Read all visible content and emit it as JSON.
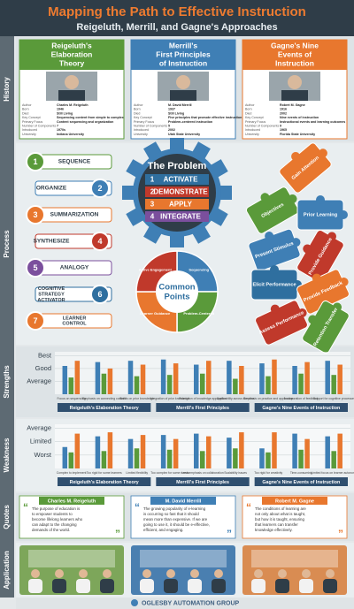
{
  "header": {
    "title": "Mapping the Path to Effective Instruction",
    "subtitle": "Reigeluth, Merrill, and Gagne's Approaches"
  },
  "sections": [
    "History",
    "Process",
    "Strengths",
    "Weakness",
    "Quotes",
    "Application"
  ],
  "history": {
    "fields": [
      "Author",
      "Born",
      "Died",
      "Key Concept",
      "Primary Focus",
      "Number of Components",
      "Introduced",
      "University"
    ],
    "cards": [
      {
        "title": [
          "Reigeluth's",
          "Elaboration",
          "Theory"
        ],
        "values": [
          "Charles M. Reigeluth",
          "1946",
          "Still Living",
          "Sequencing content from simple to complex",
          "Content sequencing and organization",
          "7",
          "1970s",
          "Indiana University"
        ]
      },
      {
        "title": [
          "Merrill's",
          "First Principles",
          "of Instruction"
        ],
        "values": [
          "M. David Merrill",
          "1937",
          "Still Living",
          "Five principles that promote effective instruction",
          "Problem-centered instruction",
          "5",
          "2002",
          "Utah State University"
        ]
      },
      {
        "title": [
          "Gagne's Nine",
          "Events of",
          "Instruction"
        ],
        "values": [
          "Robert M. Gagne",
          "1916",
          "2002",
          "Nine events of instruction",
          "Instructional events and learning outcomes",
          "9",
          "1965",
          "Florida State University"
        ]
      }
    ]
  },
  "process": {
    "steps": [
      {
        "number": "1",
        "label": [
          "SEQUENCE"
        ]
      },
      {
        "number": "2",
        "label": [
          "ORGANIZE"
        ]
      },
      {
        "number": "3",
        "label": [
          "SUMMARIZATION"
        ]
      },
      {
        "number": "4",
        "label": [
          "SYNTHESIZE"
        ]
      },
      {
        "number": "5",
        "label": [
          "ANALOGY"
        ]
      },
      {
        "number": "6",
        "label": [
          "COGNITIVE",
          "STRATEGY",
          "ACTIVATOR"
        ]
      },
      {
        "number": "7",
        "label": [
          "LEARNER",
          "CONTROL"
        ]
      }
    ],
    "problem": {
      "title": "The Problem",
      "items": [
        {
          "number": "1",
          "label": "ACTIVATE"
        },
        {
          "number": "2",
          "label": "DEMONSTRATE"
        },
        {
          "number": "3",
          "label": "APPLY"
        },
        {
          "number": "4",
          "label": "INTEGRATE"
        }
      ]
    },
    "common": {
      "title": [
        "Common",
        "Points"
      ],
      "segments": [
        "Sequencing",
        "Problem-Centered",
        "Learner Guidance",
        "Active Engagement"
      ]
    },
    "events": [
      "Gain Attention",
      "Objectives",
      "Prior Learning",
      "Present Stimulus",
      "Provide Guidance",
      "Elicit Performance",
      "Provide Feedback",
      "Assess Performance",
      "Retention Transfer"
    ]
  },
  "strengths": {
    "ylim": [
      0,
      3.3
    ],
    "yticks": [
      {
        "value": 1,
        "label": "Average"
      },
      {
        "value": 2,
        "label": "Good"
      },
      {
        "value": 3,
        "label": "Best"
      }
    ],
    "colors": [
      "#3f7fb5",
      "#5a9a3a",
      "#e8772e"
    ],
    "groups": [
      {
        "name": "Reigeluth's Elaboration Theory",
        "categories": [
          {
            "label": "Focus on sequencing",
            "values": [
              2.2,
              1.3,
              2.6
            ]
          },
          {
            "label": "Emphasis on connecting content",
            "values": [
              2.5,
              1.6,
              2.0
            ]
          },
          {
            "label": "Builds on prior knowledge",
            "values": [
              2.6,
              1.4,
              2.3
            ]
          }
        ]
      },
      {
        "name": "Merrill's First Principles",
        "categories": [
          {
            "label": "Integration of prior knowledge",
            "values": [
              2.7,
              1.5,
              2.4
            ]
          },
          {
            "label": "Promotion of knowledge application",
            "values": [
              2.3,
              1.6,
              2.6
            ]
          },
          {
            "label": "Applicability across domains",
            "values": [
              2.6,
              1.2,
              2.2
            ]
          }
        ]
      },
      {
        "name": "Gagne's Nine Events of Instruction",
        "categories": [
          {
            "label": "Emphasis on practice and application",
            "values": [
              2.4,
              1.4,
              2.7
            ]
          },
          {
            "label": "Incorporation of feedback",
            "values": [
              2.2,
              1.6,
              2.5
            ]
          },
          {
            "label": "Support for cognitive processes",
            "values": [
              2.6,
              1.5,
              2.3
            ]
          }
        ]
      }
    ]
  },
  "weakness": {
    "ylim": [
      0,
      3.3
    ],
    "yticks": [
      {
        "value": 1,
        "label": "Worst"
      },
      {
        "value": 2,
        "label": "Limited"
      },
      {
        "value": 3,
        "label": "Average"
      }
    ],
    "colors": [
      "#3f7fb5",
      "#5a9a3a",
      "#e8772e"
    ],
    "groups": [
      {
        "name": "Reigeluth's Elaboration Theory",
        "categories": [
          {
            "label": "Complex to implement",
            "values": [
              1.6,
              1.2,
              2.6
            ]
          },
          {
            "label": "Too rigid for some learners",
            "values": [
              2.4,
              1.3,
              2.7
            ]
          },
          {
            "label": "Limited flexibility",
            "values": [
              2.2,
              1.5,
              2.5
            ]
          }
        ]
      },
      {
        "name": "Merrill's First Principles",
        "categories": [
          {
            "label": "Too complex for some needs",
            "values": [
              2.5,
              1.4,
              2.2
            ]
          },
          {
            "label": "Less emphasis on collaboration",
            "values": [
              2.6,
              1.3,
              2.4
            ]
          },
          {
            "label": "Scalability issues",
            "values": [
              2.3,
              1.5,
              2.7
            ]
          }
        ]
      },
      {
        "name": "Gagne's Nine Events of Instruction",
        "categories": [
          {
            "label": "Too rigid for creativity",
            "values": [
              1.5,
              1.2,
              2.7
            ]
          },
          {
            "label": "Time-consuming",
            "values": [
              2.6,
              1.4,
              2.2
            ]
          },
          {
            "label": "Limited focus on learner autonomy",
            "values": [
              2.4,
              1.3,
              2.6
            ]
          }
        ]
      }
    ]
  },
  "quotes": [
    {
      "author": "Charles M. Reigeluth",
      "text": [
        "The purpose of education is",
        "to empower students to",
        "become lifelong learners who",
        "can adapt to the changing",
        "demands of the world."
      ]
    },
    {
      "author": "M. David Merrill",
      "text": [
        "The growing popularity of e-learning",
        "is occurring so fast that it should",
        "mean more than expensive. If we are",
        "going to use it, it should be e-effective,",
        "efficient, and engaging."
      ]
    },
    {
      "author": "Robert M. Gagne",
      "text": [
        "The conditions of learning are",
        "not only about what is taught,",
        "but how it is taught, ensuring",
        "that learners can transfer",
        "knowledge effectively."
      ]
    }
  ],
  "footer": "OGLESBY AUTOMATION GROUP"
}
